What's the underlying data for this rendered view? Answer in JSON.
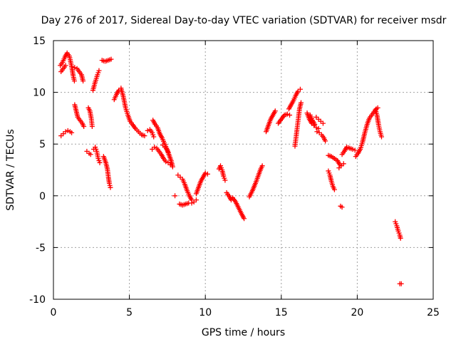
{
  "chart_data": {
    "type": "scatter",
    "title": "Day 276 of 2017, Sidereal Day-to-day VTEC variation (SDTVAR) for receiver msdr",
    "xlabel": "GPS time / hours",
    "ylabel": "SDTVAR / TECUs",
    "xlim": [
      0,
      25
    ],
    "ylim": [
      -10,
      15
    ],
    "x_ticks": [
      0,
      5,
      10,
      15,
      20,
      25
    ],
    "y_ticks": [
      -10,
      -5,
      0,
      5,
      10,
      15
    ],
    "x_tick_labels": [
      "0",
      "5",
      "10",
      "15",
      "20",
      "25"
    ],
    "y_tick_labels": [
      "-10",
      "-5",
      "0",
      "5",
      "10",
      "15"
    ],
    "grid": true,
    "marker": "+",
    "color": "#ff0000",
    "segments": [
      [
        [
          0.45,
          12.6
        ],
        [
          0.6,
          12.9
        ],
        [
          0.75,
          13.4
        ],
        [
          0.9,
          13.8
        ],
        [
          1.05,
          13.5
        ],
        [
          1.2,
          12.5
        ],
        [
          1.3,
          11.6
        ],
        [
          1.38,
          11.1
        ]
      ],
      [
        [
          0.5,
          12.0
        ],
        [
          0.65,
          12.3
        ],
        [
          0.8,
          12.6
        ]
      ],
      [
        [
          0.5,
          5.8
        ],
        [
          0.65,
          6.0
        ],
        [
          0.8,
          6.2
        ],
        [
          0.95,
          6.3
        ],
        [
          1.1,
          6.2
        ],
        [
          1.2,
          6.1
        ]
      ],
      [
        [
          1.4,
          12.4
        ],
        [
          1.55,
          12.3
        ],
        [
          1.7,
          12.0
        ],
        [
          1.85,
          11.7
        ],
        [
          1.95,
          11.1
        ]
      ],
      [
        [
          1.4,
          8.8
        ],
        [
          1.5,
          8.2
        ],
        [
          1.6,
          7.6
        ],
        [
          1.75,
          7.3
        ],
        [
          1.9,
          7.0
        ],
        [
          2.0,
          6.7
        ]
      ],
      [
        [
          2.2,
          4.3
        ],
        [
          2.35,
          4.1
        ],
        [
          2.45,
          4.0
        ]
      ],
      [
        [
          2.3,
          8.5
        ],
        [
          2.4,
          8.2
        ],
        [
          2.5,
          7.4
        ],
        [
          2.55,
          6.7
        ]
      ],
      [
        [
          2.6,
          10.2
        ],
        [
          2.75,
          11.0
        ],
        [
          2.9,
          11.7
        ],
        [
          3.0,
          12.1
        ]
      ],
      [
        [
          2.65,
          4.5
        ],
        [
          2.75,
          4.7
        ],
        [
          2.85,
          4.3
        ],
        [
          2.95,
          3.6
        ],
        [
          3.05,
          3.2
        ]
      ],
      [
        [
          3.2,
          13.1
        ],
        [
          3.4,
          13.0
        ],
        [
          3.6,
          13.1
        ],
        [
          3.8,
          13.2
        ]
      ],
      [
        [
          3.3,
          3.8
        ],
        [
          3.45,
          3.2
        ],
        [
          3.55,
          2.6
        ],
        [
          3.62,
          1.8
        ],
        [
          3.68,
          1.2
        ],
        [
          3.75,
          0.8
        ]
      ],
      [
        [
          4.0,
          9.3
        ],
        [
          4.15,
          9.8
        ],
        [
          4.3,
          10.2
        ],
        [
          4.45,
          10.4
        ],
        [
          4.6,
          9.6
        ],
        [
          4.75,
          8.5
        ],
        [
          4.9,
          7.8
        ],
        [
          5.05,
          7.2
        ],
        [
          5.2,
          6.9
        ],
        [
          5.4,
          6.5
        ],
        [
          5.6,
          6.2
        ],
        [
          5.8,
          5.9
        ],
        [
          6.0,
          5.8
        ]
      ],
      [
        [
          6.2,
          6.3
        ],
        [
          6.35,
          6.4
        ],
        [
          6.5,
          6.1
        ],
        [
          6.6,
          5.7
        ]
      ],
      [
        [
          6.5,
          4.5
        ],
        [
          6.65,
          4.7
        ],
        [
          6.8,
          4.6
        ],
        [
          6.95,
          4.3
        ],
        [
          7.1,
          4.0
        ],
        [
          7.25,
          3.6
        ],
        [
          7.4,
          3.3
        ],
        [
          7.55,
          3.2
        ],
        [
          7.7,
          3.0
        ]
      ],
      [
        [
          6.55,
          7.3
        ],
        [
          6.7,
          6.9
        ],
        [
          6.85,
          6.6
        ],
        [
          7.0,
          6.0
        ],
        [
          7.15,
          5.6
        ],
        [
          7.3,
          5.1
        ],
        [
          7.45,
          4.6
        ],
        [
          7.6,
          4.0
        ],
        [
          7.75,
          3.4
        ],
        [
          7.85,
          2.8
        ]
      ],
      [
        [
          7.2,
          4.9
        ],
        [
          7.35,
          4.7
        ],
        [
          7.5,
          4.4
        ],
        [
          7.6,
          4.0
        ]
      ],
      [
        [
          8.0,
          0.0
        ]
      ],
      [
        [
          8.2,
          2.0
        ],
        [
          8.35,
          1.8
        ],
        [
          8.5,
          1.6
        ],
        [
          8.65,
          1.1
        ],
        [
          8.8,
          0.5
        ],
        [
          8.95,
          0.0
        ],
        [
          9.1,
          -0.4
        ],
        [
          9.25,
          -0.6
        ],
        [
          9.4,
          -0.4
        ]
      ],
      [
        [
          8.3,
          -0.8
        ],
        [
          8.5,
          -0.9
        ],
        [
          8.7,
          -0.8
        ],
        [
          8.9,
          -0.7
        ],
        [
          9.1,
          -0.7
        ]
      ],
      [
        [
          9.4,
          0.2
        ],
        [
          9.55,
          0.8
        ],
        [
          9.7,
          1.4
        ],
        [
          9.85,
          1.8
        ],
        [
          10.0,
          2.2
        ],
        [
          10.15,
          2.1
        ]
      ],
      [
        [
          10.9,
          2.6
        ],
        [
          11.0,
          2.9
        ],
        [
          11.1,
          2.5
        ],
        [
          11.2,
          1.9
        ],
        [
          11.3,
          1.5
        ]
      ],
      [
        [
          11.4,
          0.3
        ],
        [
          11.55,
          0.0
        ],
        [
          11.7,
          -0.4
        ]
      ],
      [
        [
          11.8,
          -0.2
        ],
        [
          12.0,
          -0.6
        ],
        [
          12.2,
          -1.2
        ],
        [
          12.4,
          -1.8
        ],
        [
          12.55,
          -2.2
        ]
      ],
      [
        [
          12.9,
          -0.1
        ],
        [
          13.1,
          0.5
        ],
        [
          13.3,
          1.2
        ],
        [
          13.5,
          2.0
        ],
        [
          13.65,
          2.6
        ],
        [
          13.75,
          2.9
        ]
      ],
      [
        [
          14.0,
          6.2
        ],
        [
          14.15,
          6.8
        ],
        [
          14.3,
          7.4
        ],
        [
          14.45,
          7.8
        ],
        [
          14.6,
          8.2
        ]
      ],
      [
        [
          14.8,
          7.0
        ],
        [
          15.0,
          7.4
        ],
        [
          15.2,
          7.8
        ],
        [
          15.4,
          7.9
        ],
        [
          15.55,
          7.8
        ]
      ],
      [
        [
          15.5,
          8.4
        ],
        [
          15.65,
          8.8
        ],
        [
          15.8,
          9.2
        ],
        [
          15.95,
          9.7
        ],
        [
          16.1,
          10.1
        ],
        [
          16.25,
          10.3
        ]
      ],
      [
        [
          15.9,
          4.8
        ],
        [
          16.0,
          6.0
        ],
        [
          16.1,
          7.2
        ],
        [
          16.2,
          8.4
        ],
        [
          16.3,
          9.0
        ]
      ],
      [
        [
          16.7,
          8.0
        ],
        [
          16.85,
          7.4
        ],
        [
          17.0,
          7.0
        ],
        [
          17.15,
          6.8
        ],
        [
          17.3,
          6.6
        ],
        [
          17.45,
          6.5
        ]
      ],
      [
        [
          16.9,
          7.8
        ],
        [
          17.05,
          7.3
        ],
        [
          17.2,
          6.9
        ]
      ],
      [
        [
          17.3,
          7.6
        ],
        [
          17.45,
          7.4
        ],
        [
          17.6,
          7.2
        ],
        [
          17.75,
          7.0
        ]
      ],
      [
        [
          17.35,
          6.2
        ],
        [
          17.5,
          6.1
        ],
        [
          17.65,
          5.9
        ],
        [
          17.8,
          5.6
        ],
        [
          17.9,
          5.3
        ]
      ],
      [
        [
          18.1,
          3.9
        ],
        [
          18.3,
          3.8
        ],
        [
          18.5,
          3.6
        ],
        [
          18.7,
          3.4
        ],
        [
          18.85,
          3.0
        ]
      ],
      [
        [
          18.1,
          2.4
        ],
        [
          18.2,
          2.0
        ],
        [
          18.3,
          1.4
        ],
        [
          18.4,
          0.9
        ],
        [
          18.5,
          0.6
        ]
      ],
      [
        [
          18.8,
          2.7
        ],
        [
          18.95,
          2.9
        ],
        [
          19.1,
          3.1
        ]
      ],
      [
        [
          18.9,
          -1.0
        ],
        [
          19.0,
          -1.1
        ]
      ],
      [
        [
          19.0,
          4.0
        ],
        [
          19.15,
          4.3
        ],
        [
          19.3,
          4.7
        ],
        [
          19.5,
          4.6
        ],
        [
          19.7,
          4.5
        ],
        [
          19.85,
          4.4
        ]
      ],
      [
        [
          19.9,
          3.8
        ],
        [
          20.05,
          4.1
        ],
        [
          20.2,
          4.5
        ],
        [
          20.35,
          5.2
        ],
        [
          20.5,
          6.1
        ],
        [
          20.65,
          6.9
        ],
        [
          20.8,
          7.5
        ],
        [
          20.95,
          7.8
        ],
        [
          21.1,
          8.1
        ],
        [
          21.25,
          8.4
        ],
        [
          21.35,
          8.5
        ]
      ],
      [
        [
          21.2,
          8.3
        ],
        [
          21.3,
          7.8
        ],
        [
          21.4,
          6.9
        ],
        [
          21.5,
          6.2
        ],
        [
          21.6,
          5.7
        ]
      ],
      [
        [
          22.5,
          -2.5
        ],
        [
          22.6,
          -2.9
        ],
        [
          22.7,
          -3.4
        ],
        [
          22.8,
          -3.8
        ],
        [
          22.85,
          -4.1
        ]
      ],
      [
        [
          22.8,
          -8.5
        ],
        [
          22.9,
          -8.5
        ]
      ]
    ]
  }
}
